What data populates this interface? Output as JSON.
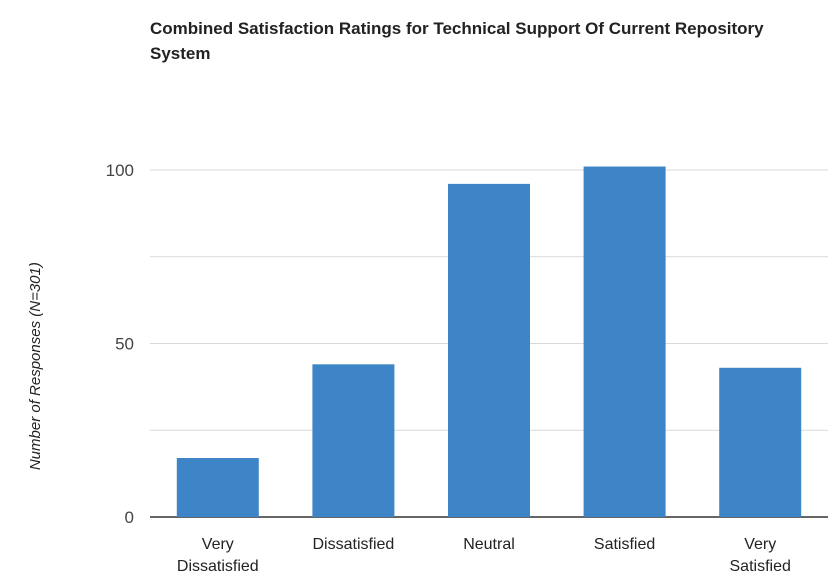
{
  "chart_data": {
    "type": "bar",
    "title": "Combined Satisfaction Ratings for Technical Support Of Current Repository System",
    "ylabel": "Number of Responses (N=301)",
    "xlabel": "",
    "categories": [
      [
        "Very",
        "Dissatisfied"
      ],
      [
        "Dissatisfied"
      ],
      [
        "Neutral"
      ],
      [
        "Satisfied"
      ],
      [
        "Very",
        "Satisfied"
      ]
    ],
    "values": [
      17,
      44,
      96,
      101,
      43
    ],
    "ylim": [
      0,
      110
    ],
    "yticks": [
      0,
      50,
      100
    ],
    "grid": true,
    "legend": "none",
    "colors": {
      "bar": "#3d85c6",
      "grid": "#d9d9d9",
      "baseline": "#333333"
    }
  }
}
